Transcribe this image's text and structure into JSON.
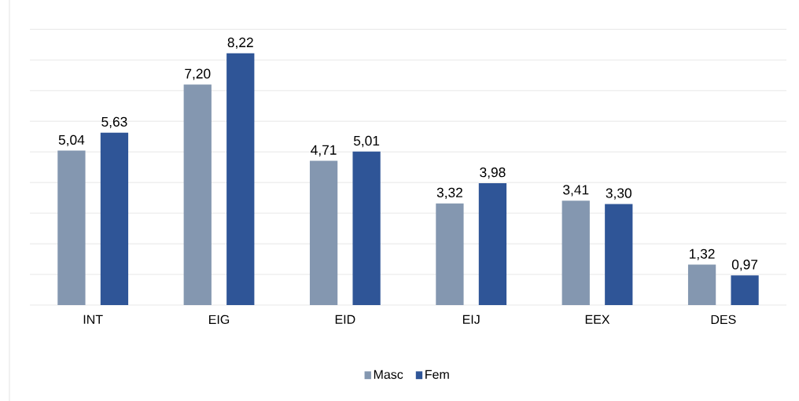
{
  "chart_data": {
    "type": "bar",
    "categories": [
      "INT",
      "EIG",
      "EID",
      "EIJ",
      "EEX",
      "DES"
    ],
    "series": [
      {
        "name": "Masc",
        "color": "#8497b0",
        "values": [
          5.04,
          7.2,
          4.71,
          3.32,
          3.41,
          1.32
        ],
        "value_labels": [
          "5,04",
          "7,20",
          "4,71",
          "3,32",
          "3,41",
          "1,32"
        ]
      },
      {
        "name": "Fem",
        "color": "#2f5597",
        "values": [
          5.63,
          8.22,
          5.01,
          3.98,
          3.3,
          0.97
        ],
        "value_labels": [
          "5,63",
          "8,22",
          "5,01",
          "3,98",
          "3,30",
          "0,97"
        ]
      }
    ],
    "ylim": [
      0,
      9
    ],
    "yticks": [
      {
        "value": 0,
        "label": null
      },
      {
        "value": 1,
        "label": null
      },
      {
        "value": 2,
        "label": null
      },
      {
        "value": 3,
        "label": null
      },
      {
        "value": 4,
        "label": null
      },
      {
        "value": 5,
        "label": null
      },
      {
        "value": 6,
        "label": null
      },
      {
        "value": 7,
        "label": null
      },
      {
        "value": 8,
        "label": null
      },
      {
        "value": 9,
        "label": null
      }
    ],
    "grid": "y",
    "legend": "bottom",
    "tick_labels": "x"
  }
}
